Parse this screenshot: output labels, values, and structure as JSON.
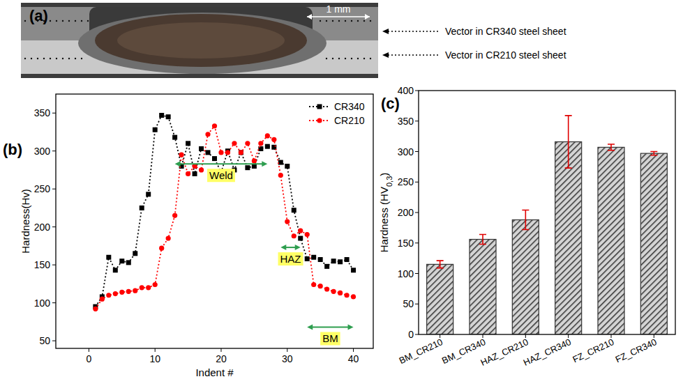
{
  "panel_a": {
    "label": "(a)",
    "scale_bar": "1 mm",
    "callouts": [
      "Vector in CR340 steel sheet",
      "Vector in CR210 steel sheet"
    ]
  },
  "chart_data": [
    {
      "type": "line",
      "panel_label": "(b)",
      "x_label": "Indent #",
      "y_label": "Hardness(Hv)",
      "x": [
        1,
        2,
        3,
        4,
        5,
        6,
        7,
        8,
        9,
        10,
        11,
        12,
        13,
        14,
        15,
        16,
        17,
        18,
        19,
        20,
        21,
        22,
        23,
        24,
        25,
        26,
        27,
        28,
        29,
        30,
        31,
        32,
        33,
        34,
        35,
        36,
        37,
        38,
        39,
        40
      ],
      "series": [
        {
          "name": "CR340",
          "color": "#000000",
          "marker": "square",
          "line_style": "dotted",
          "values": [
            95,
            108,
            160,
            143,
            155,
            153,
            165,
            225,
            243,
            328,
            347,
            345,
            318,
            280,
            310,
            270,
            303,
            298,
            290,
            272,
            300,
            275,
            298,
            278,
            280,
            303,
            306,
            305,
            285,
            280,
            222,
            185,
            158,
            160,
            157,
            148,
            155,
            154,
            157,
            143
          ]
        },
        {
          "name": "CR210",
          "color": "#ff0000",
          "marker": "circle",
          "line_style": "dotted",
          "values": [
            92,
            105,
            110,
            112,
            114,
            115,
            116,
            120,
            120,
            124,
            172,
            185,
            215,
            295,
            270,
            280,
            275,
            322,
            333,
            298,
            298,
            310,
            298,
            310,
            287,
            310,
            320,
            315,
            268,
            207,
            188,
            195,
            190,
            124,
            122,
            118,
            115,
            113,
            110,
            108
          ]
        }
      ],
      "xlim": [
        -5,
        43
      ],
      "xticks": [
        0,
        10,
        20,
        30,
        40
      ],
      "ylim": [
        40,
        375
      ],
      "yticks": [
        50,
        100,
        150,
        200,
        250,
        300,
        350
      ],
      "legend": "upper right",
      "grid": false,
      "annotations": [
        {
          "text": "Weld",
          "x_start": 13,
          "x_end": 27,
          "y": 283
        },
        {
          "text": "HAZ",
          "x_start": 29,
          "x_end": 32,
          "y": 173
        },
        {
          "text": "BM",
          "x_start": 33,
          "x_end": 40,
          "y": 68
        }
      ]
    },
    {
      "type": "bar",
      "panel_label": "(c)",
      "y_label": [
        "Hardness (HV",
        "0,3",
        ")"
      ],
      "categories": [
        "BM_CR210",
        "BM_CR340",
        "HAZ_CR210",
        "HAZ_CR340",
        "FZ_CR210",
        "FZ_CR340"
      ],
      "values": [
        115,
        156,
        188,
        316,
        307,
        297
      ],
      "errors": [
        6,
        8,
        16,
        43,
        5,
        3
      ],
      "color": "#333333",
      "ylim": [
        0,
        400
      ],
      "yticks": [
        0,
        50,
        100,
        150,
        200,
        250,
        300,
        350,
        400
      ],
      "grid": false
    }
  ]
}
